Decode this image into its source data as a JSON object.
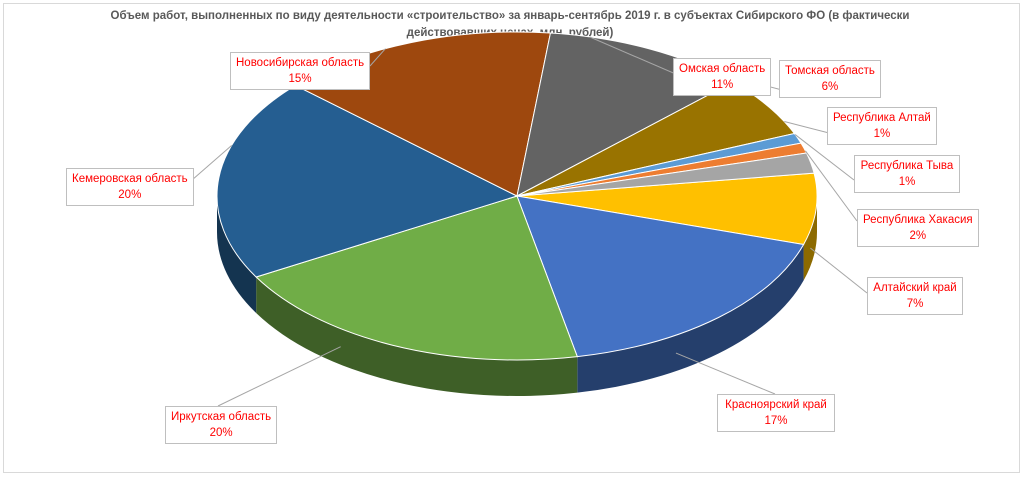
{
  "chart_data": {
    "type": "pie",
    "title": "Объем работ, выполненных по виду деятельности «строительство» за январь-сентябрь 2019 г. в субъектах Сибирского ФО (в фактически действовавших ценах, млн. рублей)",
    "legend": "none",
    "slices": [
      {
        "name": "Алтайский край",
        "value": 7,
        "label": "7%",
        "color": "#ffc000"
      },
      {
        "name": "Красноярский край",
        "value": 17,
        "label": "17%",
        "color": "#4472c4"
      },
      {
        "name": "Иркутская область",
        "value": 20,
        "label": "20%",
        "color": "#70ad47"
      },
      {
        "name": "Кемеровская область",
        "value": 20,
        "label": "20%",
        "color": "#255e91"
      },
      {
        "name": "Новосибирская область",
        "value": 15,
        "label": "15%",
        "color": "#9e480e"
      },
      {
        "name": "Омская область",
        "value": 11,
        "label": "11%",
        "color": "#636363"
      },
      {
        "name": "Томская область",
        "value": 6,
        "label": "6%",
        "color": "#997300"
      },
      {
        "name": "Республика Алтай",
        "value": 1,
        "label": "1%",
        "color": "#5b9bd5"
      },
      {
        "name": "Республика Тыва",
        "value": 1,
        "label": "1%",
        "color": "#ed7d31"
      },
      {
        "name": "Республика Хакасия",
        "value": 2,
        "label": "2%",
        "color": "#a5a5a5"
      }
    ]
  }
}
